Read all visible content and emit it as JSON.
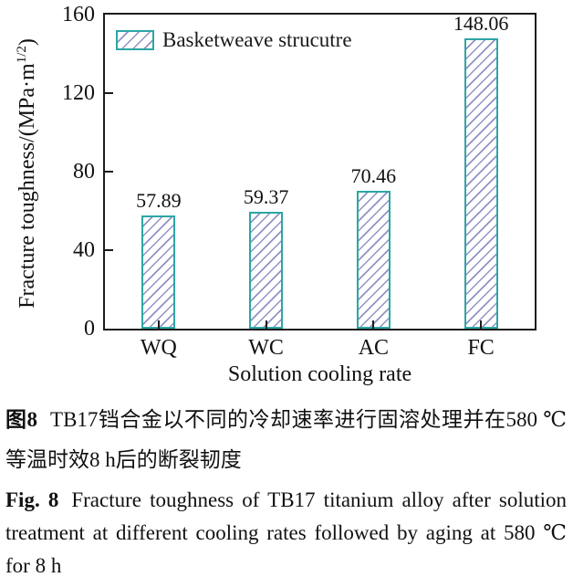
{
  "chart_data": {
    "type": "bar",
    "categories": [
      "WQ",
      "WC",
      "AC",
      "FC"
    ],
    "values": [
      57.89,
      59.37,
      70.46,
      148.06
    ],
    "value_labels": [
      "57.89",
      "59.37",
      "70.46",
      "148.06"
    ],
    "title": "",
    "xlabel": "Solution cooling rate",
    "ylabel_pre": "Fracture toughness/(MPa·m",
    "ylabel_sup": "1/2",
    "ylabel_post": ")",
    "ylim": [
      0,
      160
    ],
    "yticks": [
      0,
      40,
      80,
      120,
      160
    ],
    "legend": {
      "position": "upper-left-inside",
      "label": "Basketweave strucutre"
    },
    "grid": false,
    "bar_style": {
      "hatch": "diagonal-forward",
      "edge_color": "#2ca6a4",
      "hatch_color": "#8f93c4",
      "fill": "#ffffff"
    },
    "axis_color": "#1c1c1c"
  },
  "caption": {
    "zh_prefix": "图8",
    "zh_text": "TB17铛合金以不同的冷却速率进行固溶处理并在580 ℃等温时效8 h后的断裂韧度",
    "en_prefix": "Fig. 8",
    "en_text": "Fracture toughness of TB17 titanium alloy after solution treatment at different cooling rates followed by aging at 580 ℃ for 8 h"
  }
}
